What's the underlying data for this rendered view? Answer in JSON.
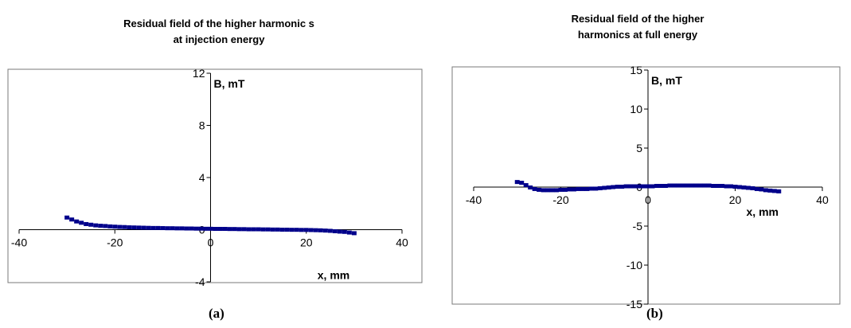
{
  "chart_data": [
    {
      "type": "scatter",
      "title_lines": [
        "Residual field of the higher harmonic s",
        "at injection energy"
      ],
      "xlabel": "x, mm",
      "ylabel": "B, mT",
      "caption": "(a)",
      "xlim": [
        -40,
        40
      ],
      "ylim": [
        -4,
        12
      ],
      "xticks": [
        -40,
        -20,
        0,
        20,
        40
      ],
      "yticks": [
        -4,
        0,
        4,
        8,
        12
      ],
      "grid": false,
      "marker_color": "#00008B",
      "series": [
        {
          "x": [
            -30,
            -29,
            -28,
            -27,
            -26,
            -25,
            -24,
            -23,
            -22,
            -21,
            -20,
            -19,
            -18,
            -17,
            -16,
            -15,
            -14,
            -13,
            -12,
            -11,
            -10,
            -9,
            -8,
            -7,
            -6,
            -5,
            -4,
            -3,
            -2,
            -1,
            0,
            1,
            2,
            3,
            4,
            5,
            6,
            7,
            8,
            9,
            10,
            11,
            12,
            13,
            14,
            15,
            16,
            17,
            18,
            19,
            20,
            21,
            22,
            23,
            24,
            25,
            26,
            27,
            28,
            29,
            30
          ],
          "y": [
            0.9,
            0.75,
            0.6,
            0.5,
            0.4,
            0.35,
            0.3,
            0.27,
            0.25,
            0.22,
            0.2,
            0.18,
            0.17,
            0.15,
            0.14,
            0.13,
            0.12,
            0.11,
            0.1,
            0.1,
            0.09,
            0.08,
            0.08,
            0.07,
            0.07,
            0.06,
            0.06,
            0.05,
            0.05,
            0.04,
            0.04,
            0.03,
            0.03,
            0.03,
            0.02,
            0.02,
            0.01,
            0.01,
            0.0,
            0.0,
            0.0,
            -0.01,
            -0.01,
            -0.02,
            -0.02,
            -0.03,
            -0.03,
            -0.04,
            -0.04,
            -0.05,
            -0.05,
            -0.06,
            -0.07,
            -0.08,
            -0.1,
            -0.12,
            -0.15,
            -0.18,
            -0.2,
            -0.25,
            -0.3
          ]
        }
      ]
    },
    {
      "type": "scatter",
      "title_lines": [
        "Residual field of the higher",
        "harmonics at full energy"
      ],
      "xlabel": "x, mm",
      "ylabel": "B, mT",
      "caption": "(b)",
      "xlim": [
        -40,
        40
      ],
      "ylim": [
        -15,
        15
      ],
      "xticks": [
        -40,
        -20,
        0,
        20,
        40
      ],
      "yticks": [
        -15,
        -10,
        -5,
        0,
        5,
        10,
        15
      ],
      "grid": false,
      "marker_color": "#00008B",
      "series": [
        {
          "x": [
            -30,
            -29,
            -28,
            -27,
            -26,
            -25,
            -24,
            -23,
            -22,
            -21,
            -20,
            -19,
            -18,
            -17,
            -16,
            -15,
            -14,
            -13,
            -12,
            -11,
            -10,
            -9,
            -8,
            -7,
            -6,
            -5,
            -4,
            -3,
            -2,
            -1,
            0,
            1,
            2,
            3,
            4,
            5,
            6,
            7,
            8,
            9,
            10,
            11,
            12,
            13,
            14,
            15,
            16,
            17,
            18,
            19,
            20,
            21,
            22,
            23,
            24,
            25,
            26,
            27,
            28,
            29,
            30
          ],
          "y": [
            0.6,
            0.5,
            0.2,
            -0.1,
            -0.3,
            -0.4,
            -0.45,
            -0.45,
            -0.45,
            -0.45,
            -0.4,
            -0.4,
            -0.35,
            -0.35,
            -0.3,
            -0.3,
            -0.3,
            -0.25,
            -0.25,
            -0.2,
            -0.15,
            -0.1,
            -0.05,
            0.0,
            0.0,
            0.05,
            0.05,
            0.05,
            0.05,
            0.05,
            0.05,
            0.05,
            0.1,
            0.1,
            0.1,
            0.15,
            0.15,
            0.15,
            0.15,
            0.15,
            0.15,
            0.15,
            0.15,
            0.15,
            0.15,
            0.1,
            0.1,
            0.1,
            0.05,
            0.05,
            0.0,
            -0.05,
            -0.1,
            -0.15,
            -0.2,
            -0.3,
            -0.35,
            -0.45,
            -0.5,
            -0.55,
            -0.6
          ]
        }
      ]
    }
  ]
}
